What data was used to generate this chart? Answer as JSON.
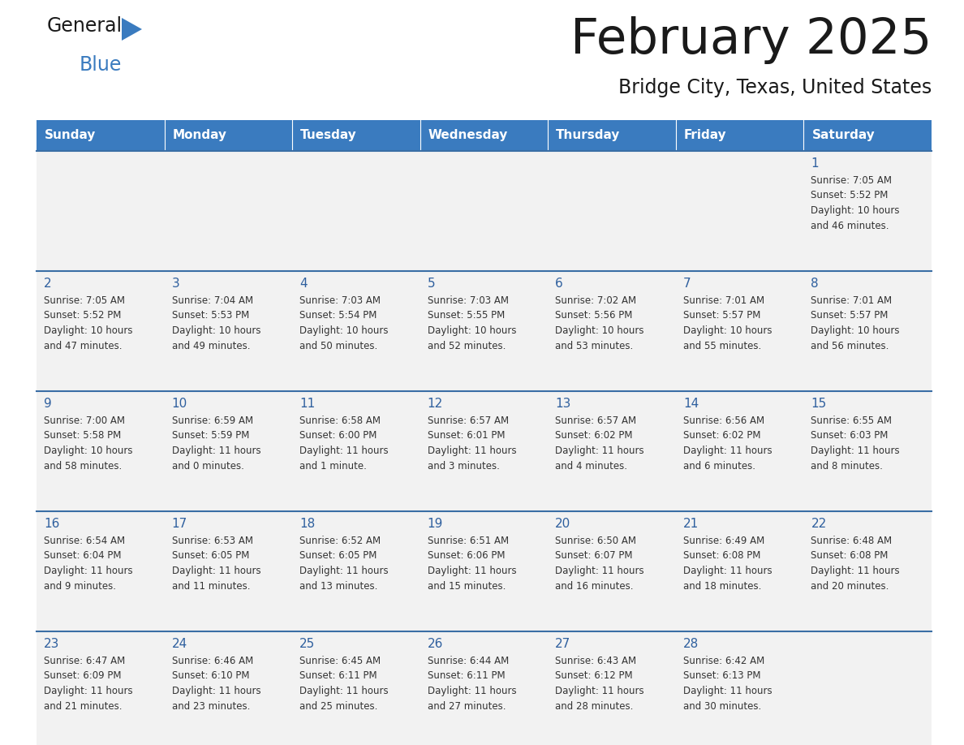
{
  "title": "February 2025",
  "subtitle": "Bridge City, Texas, United States",
  "days_of_week": [
    "Sunday",
    "Monday",
    "Tuesday",
    "Wednesday",
    "Thursday",
    "Friday",
    "Saturday"
  ],
  "header_bg": "#3a7bbf",
  "header_text": "#ffffff",
  "cell_bg": "#f2f2f2",
  "cell_border_color": "#3a6ea5",
  "day_number_color": "#2e5f9e",
  "info_text_color": "#333333",
  "calendar_data": [
    [
      null,
      null,
      null,
      null,
      null,
      null,
      {
        "day": 1,
        "sunrise": "7:05 AM",
        "sunset": "5:52 PM",
        "daylight": "10 hours and 46 minutes."
      }
    ],
    [
      {
        "day": 2,
        "sunrise": "7:05 AM",
        "sunset": "5:52 PM",
        "daylight": "10 hours and 47 minutes."
      },
      {
        "day": 3,
        "sunrise": "7:04 AM",
        "sunset": "5:53 PM",
        "daylight": "10 hours and 49 minutes."
      },
      {
        "day": 4,
        "sunrise": "7:03 AM",
        "sunset": "5:54 PM",
        "daylight": "10 hours and 50 minutes."
      },
      {
        "day": 5,
        "sunrise": "7:03 AM",
        "sunset": "5:55 PM",
        "daylight": "10 hours and 52 minutes."
      },
      {
        "day": 6,
        "sunrise": "7:02 AM",
        "sunset": "5:56 PM",
        "daylight": "10 hours and 53 minutes."
      },
      {
        "day": 7,
        "sunrise": "7:01 AM",
        "sunset": "5:57 PM",
        "daylight": "10 hours and 55 minutes."
      },
      {
        "day": 8,
        "sunrise": "7:01 AM",
        "sunset": "5:57 PM",
        "daylight": "10 hours and 56 minutes."
      }
    ],
    [
      {
        "day": 9,
        "sunrise": "7:00 AM",
        "sunset": "5:58 PM",
        "daylight": "10 hours and 58 minutes."
      },
      {
        "day": 10,
        "sunrise": "6:59 AM",
        "sunset": "5:59 PM",
        "daylight": "11 hours and 0 minutes."
      },
      {
        "day": 11,
        "sunrise": "6:58 AM",
        "sunset": "6:00 PM",
        "daylight": "11 hours and 1 minute."
      },
      {
        "day": 12,
        "sunrise": "6:57 AM",
        "sunset": "6:01 PM",
        "daylight": "11 hours and 3 minutes."
      },
      {
        "day": 13,
        "sunrise": "6:57 AM",
        "sunset": "6:02 PM",
        "daylight": "11 hours and 4 minutes."
      },
      {
        "day": 14,
        "sunrise": "6:56 AM",
        "sunset": "6:02 PM",
        "daylight": "11 hours and 6 minutes."
      },
      {
        "day": 15,
        "sunrise": "6:55 AM",
        "sunset": "6:03 PM",
        "daylight": "11 hours and 8 minutes."
      }
    ],
    [
      {
        "day": 16,
        "sunrise": "6:54 AM",
        "sunset": "6:04 PM",
        "daylight": "11 hours and 9 minutes."
      },
      {
        "day": 17,
        "sunrise": "6:53 AM",
        "sunset": "6:05 PM",
        "daylight": "11 hours and 11 minutes."
      },
      {
        "day": 18,
        "sunrise": "6:52 AM",
        "sunset": "6:05 PM",
        "daylight": "11 hours and 13 minutes."
      },
      {
        "day": 19,
        "sunrise": "6:51 AM",
        "sunset": "6:06 PM",
        "daylight": "11 hours and 15 minutes."
      },
      {
        "day": 20,
        "sunrise": "6:50 AM",
        "sunset": "6:07 PM",
        "daylight": "11 hours and 16 minutes."
      },
      {
        "day": 21,
        "sunrise": "6:49 AM",
        "sunset": "6:08 PM",
        "daylight": "11 hours and 18 minutes."
      },
      {
        "day": 22,
        "sunrise": "6:48 AM",
        "sunset": "6:08 PM",
        "daylight": "11 hours and 20 minutes."
      }
    ],
    [
      {
        "day": 23,
        "sunrise": "6:47 AM",
        "sunset": "6:09 PM",
        "daylight": "11 hours and 21 minutes."
      },
      {
        "day": 24,
        "sunrise": "6:46 AM",
        "sunset": "6:10 PM",
        "daylight": "11 hours and 23 minutes."
      },
      {
        "day": 25,
        "sunrise": "6:45 AM",
        "sunset": "6:11 PM",
        "daylight": "11 hours and 25 minutes."
      },
      {
        "day": 26,
        "sunrise": "6:44 AM",
        "sunset": "6:11 PM",
        "daylight": "11 hours and 27 minutes."
      },
      {
        "day": 27,
        "sunrise": "6:43 AM",
        "sunset": "6:12 PM",
        "daylight": "11 hours and 28 minutes."
      },
      {
        "day": 28,
        "sunrise": "6:42 AM",
        "sunset": "6:13 PM",
        "daylight": "11 hours and 30 minutes."
      },
      null
    ]
  ],
  "logo_text1": "General",
  "logo_text2": "Blue",
  "fig_width": 11.88,
  "fig_height": 9.18
}
